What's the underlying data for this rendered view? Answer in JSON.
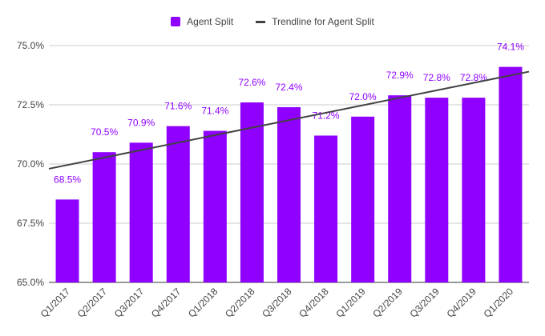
{
  "chart_data": {
    "type": "bar",
    "categories": [
      "Q1/2017",
      "Q2/2017",
      "Q3/2017",
      "Q4/2017",
      "Q1/2018",
      "Q2/2018",
      "Q3/2018",
      "Q4/2018",
      "Q1/2019",
      "Q2/2019",
      "Q3/2019",
      "Q4/2019",
      "Q1/2020"
    ],
    "series": [
      {
        "name": "Agent Split",
        "values": [
          68.5,
          70.5,
          70.9,
          71.6,
          71.4,
          72.6,
          72.4,
          71.2,
          72.0,
          72.9,
          72.8,
          72.8,
          74.1
        ],
        "color": "#8f00ff"
      },
      {
        "name": "Trendline for Agent Split",
        "type": "line",
        "values_at_ends": [
          69.8,
          73.9
        ],
        "color": "#424242"
      }
    ],
    "data_labels": [
      "68.5%",
      "70.5%",
      "70.9%",
      "71.6%",
      "71.4%",
      "72.6%",
      "72.4%",
      "71.2%",
      "72.0%",
      "72.9%",
      "72.8%",
      "72.8%",
      "74.1%"
    ],
    "y_ticks": [
      "65.0%",
      "67.5%",
      "70.0%",
      "72.5%",
      "75.0%"
    ],
    "y_tick_values": [
      65.0,
      67.5,
      70.0,
      72.5,
      75.0
    ],
    "ylim": [
      65.0,
      75.0
    ],
    "grid": true,
    "legend_position": "top"
  }
}
